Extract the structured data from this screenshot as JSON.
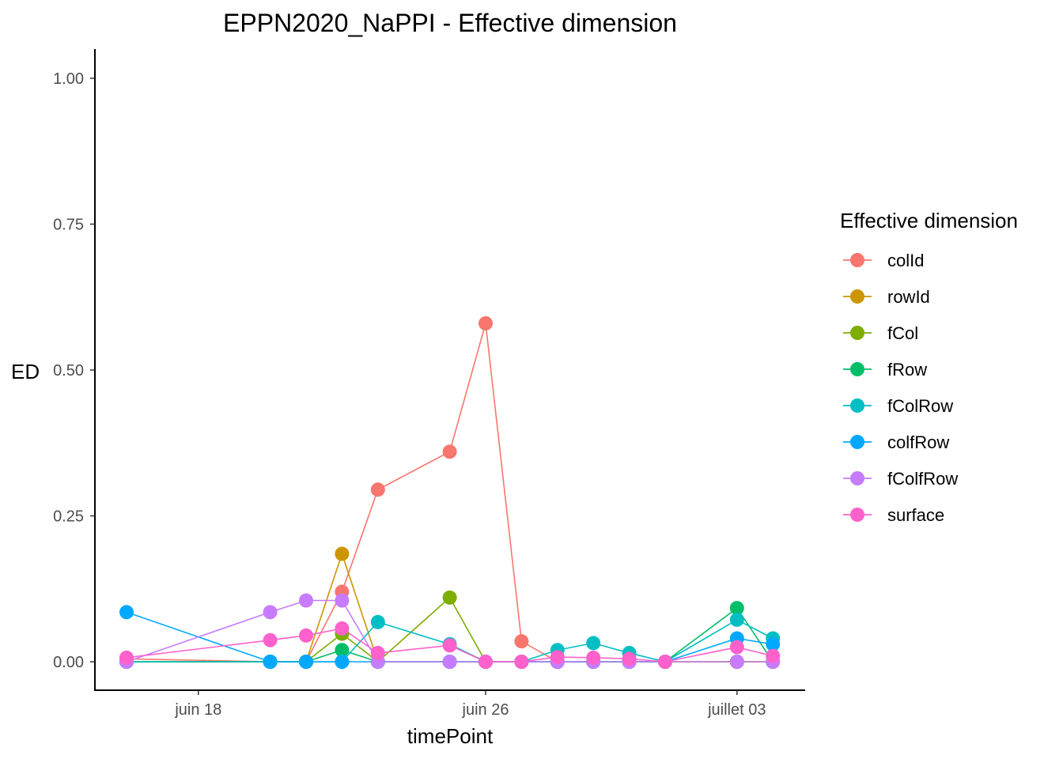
{
  "chart_data": {
    "type": "line",
    "title": "EPPN2020_NaPPI - Effective dimension",
    "xlabel": "timePoint",
    "ylabel": "ED",
    "ylim": [
      0,
      1
    ],
    "yticks": [
      "0.00",
      "0.25",
      "0.50",
      "0.75",
      "1.00"
    ],
    "xtick_labels": [
      "juin 18",
      "juin 26",
      "juillet 03"
    ],
    "x": [
      "2020-06-16",
      "2020-06-20",
      "2020-06-21",
      "2020-06-22",
      "2020-06-23",
      "2020-06-25",
      "2020-06-26",
      "2020-06-27",
      "2020-06-28",
      "2020-06-29",
      "2020-06-30",
      "2020-07-01",
      "2020-07-03",
      "2020-07-04"
    ],
    "legend": {
      "title": "Effective dimension",
      "position": "right"
    },
    "series": [
      {
        "name": "colId",
        "color": "#F8766D",
        "values": [
          0.005,
          0.0,
          0.0,
          0.12,
          0.295,
          0.36,
          0.58,
          0.035,
          0.0,
          0.0,
          0.0,
          0.0,
          0.0,
          0.0
        ]
      },
      {
        "name": "rowId",
        "color": "#CD9600",
        "values": [
          0.0,
          0.0,
          0.0,
          0.185,
          0.0,
          0.0,
          0.0,
          0.0,
          0.0,
          0.0,
          0.0,
          0.0,
          0.0,
          0.0
        ]
      },
      {
        "name": "fCol",
        "color": "#7CAE00",
        "values": [
          0.0,
          0.0,
          0.0,
          0.048,
          0.0,
          0.11,
          0.0,
          0.0,
          0.0,
          0.0,
          0.0,
          0.0,
          0.0,
          0.0
        ]
      },
      {
        "name": "fRow",
        "color": "#00BE67",
        "values": [
          0.0,
          0.0,
          0.0,
          0.02,
          0.0,
          0.0,
          0.0,
          0.0,
          0.0,
          0.0,
          0.0,
          0.0,
          0.092,
          0.0
        ]
      },
      {
        "name": "fColRow",
        "color": "#00BFC4",
        "values": [
          0.0,
          0.0,
          0.0,
          0.0,
          0.068,
          0.03,
          0.0,
          0.0,
          0.02,
          0.032,
          0.015,
          0.0,
          0.072,
          0.04
        ]
      },
      {
        "name": "colfRow",
        "color": "#00A9FF",
        "values": [
          0.085,
          0.0,
          0.0,
          0.0,
          0.0,
          0.0,
          0.0,
          0.0,
          0.0,
          0.0,
          0.0,
          0.0,
          0.04,
          0.03
        ]
      },
      {
        "name": "fColfRow",
        "color": "#C77CFF",
        "values": [
          0.0,
          0.085,
          0.105,
          0.105,
          0.0,
          0.0,
          0.0,
          0.0,
          0.0,
          0.0,
          0.0,
          0.0,
          0.0,
          0.0
        ]
      },
      {
        "name": "surface",
        "color": "#FF61CC",
        "values": [
          0.007,
          0.037,
          0.045,
          0.057,
          0.015,
          0.028,
          0.0,
          0.0,
          0.008,
          0.007,
          0.005,
          0.0,
          0.025,
          0.01
        ]
      }
    ]
  }
}
